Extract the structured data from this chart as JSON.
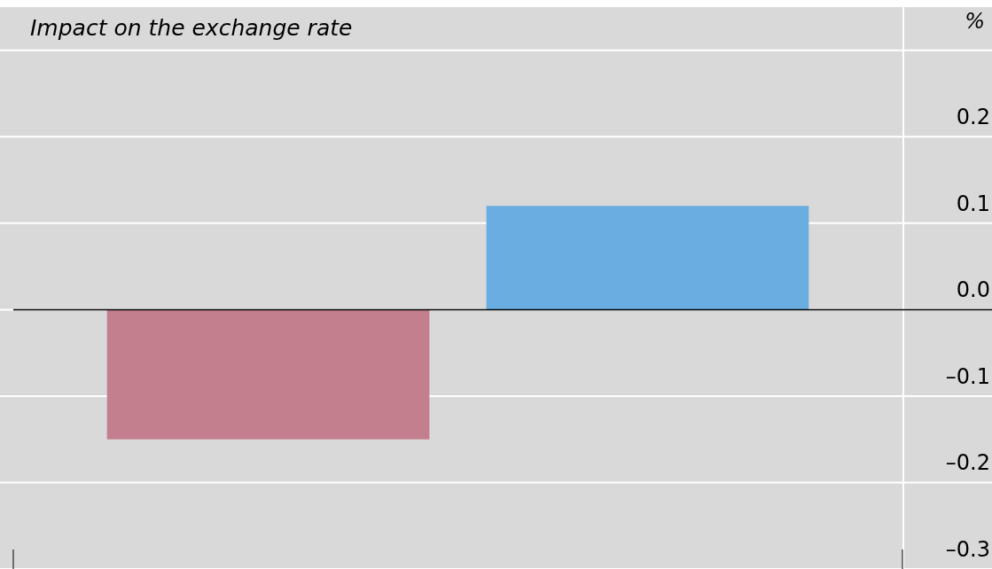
{
  "chart_data": {
    "type": "bar",
    "title": "Impact on the exchange rate",
    "ylabel": "%",
    "categories": [
      null,
      null
    ],
    "values": [
      -0.15,
      0.12
    ],
    "colors": [
      "#c47f8e",
      "#6aade0"
    ],
    "ylim": [
      -0.3,
      0.35
    ],
    "yticks": [
      {
        "value": -0.3,
        "label": "–0.3"
      },
      {
        "value": -0.2,
        "label": "–0.2"
      },
      {
        "value": -0.1,
        "label": "–0.1"
      },
      {
        "value": 0,
        "label": "0.0"
      },
      0.1,
      0.2,
      {
        "value": 0.3,
        "label": null
      }
    ],
    "grid": "y"
  }
}
